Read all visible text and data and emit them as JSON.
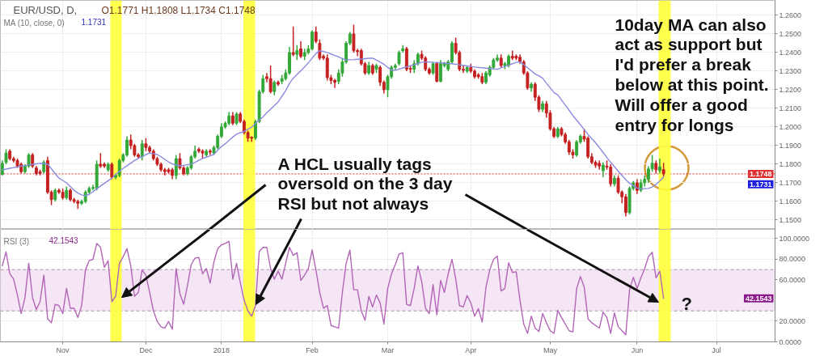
{
  "chart_data": [
    {
      "type": "candlestick",
      "title": "EUR/USD, D,",
      "subtitle": "O1.1771 H1.1808 L1.1734 C1.1748",
      "categories": [
        null,
        null,
        null,
        null,
        null,
        null,
        null,
        null,
        null,
        null,
        null,
        null,
        null,
        null,
        null,
        null,
        "Nov",
        null,
        null,
        null,
        null,
        null,
        null,
        null,
        null,
        null,
        null,
        null,
        null,
        null,
        null,
        null,
        null,
        null,
        null,
        null,
        null,
        null,
        "Dec",
        null,
        null,
        null,
        null,
        null,
        null,
        null,
        null,
        null,
        null,
        null,
        null,
        null,
        null,
        null,
        null,
        null,
        null,
        null,
        "2018",
        null,
        null,
        null,
        null,
        null,
        null,
        null,
        null,
        null,
        null,
        null,
        null,
        null,
        null,
        null,
        null,
        null,
        null,
        null,
        null,
        null,
        null,
        null,
        "Feb",
        null,
        null,
        null,
        null,
        null,
        null,
        null,
        null,
        null,
        null,
        null,
        null,
        null,
        null,
        null,
        null,
        null,
        null,
        null,
        "Mar",
        null,
        null,
        null,
        null,
        null,
        null,
        null,
        null,
        null,
        null,
        null,
        null,
        null,
        null,
        null,
        null,
        null,
        null,
        null,
        null,
        null,
        "Apr",
        null,
        null,
        null,
        null,
        null,
        null,
        null,
        null,
        null,
        null,
        null,
        null,
        null,
        null,
        null,
        null,
        null,
        null,
        null,
        null,
        "May",
        null,
        null,
        null,
        null,
        null,
        null,
        null,
        null,
        null,
        null,
        null,
        null,
        null,
        null,
        null,
        null,
        null,
        null,
        null,
        null,
        null,
        null,
        "Jun",
        null,
        null,
        null,
        null,
        null,
        null,
        null,
        null,
        null,
        null,
        null,
        null,
        null,
        null,
        null,
        null,
        null,
        null,
        null,
        null,
        "Jul",
        null,
        null,
        null,
        null,
        null,
        null,
        null,
        null,
        null,
        null,
        null,
        null,
        null,
        null,
        null
      ],
      "ohlc": [
        [
          1.1745,
          1.182,
          1.174,
          1.1805
        ],
        [
          1.181,
          1.188,
          1.18,
          1.186
        ],
        [
          1.187,
          1.188,
          1.182,
          1.183
        ],
        [
          1.183,
          1.184,
          1.181,
          1.182
        ],
        [
          1.182,
          1.183,
          1.178,
          1.179
        ],
        [
          1.18,
          1.181,
          1.175,
          1.176
        ],
        [
          1.176,
          1.18,
          1.175,
          1.179
        ],
        [
          1.179,
          1.186,
          1.178,
          1.185
        ],
        [
          1.185,
          1.186,
          1.178,
          1.179
        ],
        [
          1.178,
          1.179,
          1.174,
          1.175
        ],
        [
          1.176,
          1.177,
          1.174,
          1.175
        ],
        [
          1.176,
          1.182,
          1.175,
          1.181
        ],
        [
          1.182,
          1.184,
          1.164,
          1.165
        ],
        [
          1.165,
          1.166,
          1.158,
          1.161
        ],
        [
          1.161,
          1.167,
          1.16,
          1.166
        ],
        [
          1.166,
          1.167,
          1.164,
          1.165
        ],
        [
          1.165,
          1.167,
          1.161,
          1.162
        ],
        [
          1.162,
          1.168,
          1.161,
          1.166
        ],
        [
          1.166,
          1.167,
          1.16,
          1.161
        ],
        [
          1.161,
          1.162,
          1.159,
          1.16
        ],
        [
          1.16,
          1.161,
          1.156,
          1.159
        ],
        [
          1.159,
          1.161,
          1.158,
          1.16
        ],
        [
          1.16,
          1.166,
          1.159,
          1.165
        ],
        [
          1.165,
          1.168,
          1.164,
          1.167
        ],
        [
          1.167,
          1.169,
          1.166,
          1.1675
        ],
        [
          1.167,
          1.182,
          1.166,
          1.18
        ],
        [
          1.18,
          1.186,
          1.178,
          1.179
        ],
        [
          1.18,
          1.181,
          1.178,
          1.179
        ],
        [
          1.177,
          1.181,
          1.176,
          1.18
        ],
        [
          1.18,
          1.181,
          1.172,
          1.173
        ],
        [
          1.173,
          1.175,
          1.172,
          1.174
        ],
        [
          1.174,
          1.183,
          1.173,
          1.182
        ],
        [
          1.182,
          1.186,
          1.181,
          1.185
        ],
        [
          1.185,
          1.195,
          1.184,
          1.193
        ],
        [
          1.193,
          1.196,
          1.188,
          1.19
        ],
        [
          1.19,
          1.191,
          1.184,
          1.185
        ],
        [
          1.185,
          1.186,
          1.183,
          1.184
        ],
        [
          1.184,
          1.193,
          1.182,
          1.191
        ],
        [
          1.191,
          1.194,
          1.187,
          1.189
        ],
        [
          1.189,
          1.19,
          1.186,
          1.187
        ],
        [
          1.187,
          1.188,
          1.182,
          1.183
        ],
        [
          1.183,
          1.184,
          1.179,
          1.18
        ],
        [
          1.18,
          1.181,
          1.176,
          1.177
        ],
        [
          1.177,
          1.178,
          1.174,
          1.176
        ],
        [
          1.177,
          1.178,
          1.175,
          1.176
        ],
        [
          1.177,
          1.178,
          1.172,
          1.174
        ],
        [
          1.174,
          1.185,
          1.172,
          1.183
        ],
        [
          1.183,
          1.186,
          1.177,
          1.178
        ],
        [
          1.178,
          1.179,
          1.174,
          1.175
        ],
        [
          1.175,
          1.179,
          1.174,
          1.178
        ],
        [
          1.178,
          1.185,
          1.177,
          1.184
        ],
        [
          1.184,
          1.19,
          1.183,
          1.187
        ],
        [
          1.188,
          1.189,
          1.186,
          1.187
        ],
        [
          1.187,
          1.188,
          1.183,
          1.186
        ],
        [
          1.185,
          1.188,
          1.184,
          1.187
        ],
        [
          1.187,
          1.188,
          1.185,
          1.1865
        ],
        [
          1.186,
          1.19,
          1.185,
          1.189
        ],
        [
          1.189,
          1.196,
          1.188,
          1.195
        ],
        [
          1.195,
          1.202,
          1.194,
          1.2
        ],
        [
          1.2,
          1.203,
          1.199,
          1.202
        ],
        [
          1.202,
          1.208,
          1.201,
          1.206
        ],
        [
          1.206,
          1.208,
          1.201,
          1.202
        ],
        [
          1.202,
          1.208,
          1.201,
          1.207
        ],
        [
          1.207,
          1.208,
          1.202,
          1.203
        ],
        [
          1.203,
          1.204,
          1.196,
          1.197
        ],
        [
          1.197,
          1.198,
          1.192,
          1.194
        ],
        [
          1.1945,
          1.195,
          1.192,
          1.194
        ],
        [
          1.194,
          1.204,
          1.193,
          1.203
        ],
        [
          1.203,
          1.22,
          1.202,
          1.219
        ],
        [
          1.219,
          1.228,
          1.218,
          1.226
        ],
        [
          1.227,
          1.229,
          1.224,
          1.226
        ],
        [
          1.226,
          1.233,
          1.218,
          1.219
        ],
        [
          1.219,
          1.225,
          1.217,
          1.224
        ],
        [
          1.224,
          1.225,
          1.222,
          1.223
        ],
        [
          1.2245,
          1.228,
          1.223,
          1.226
        ],
        [
          1.226,
          1.231,
          1.225,
          1.229
        ],
        [
          1.229,
          1.243,
          1.228,
          1.24
        ],
        [
          1.24,
          1.254,
          1.238,
          1.239
        ],
        [
          1.239,
          1.244,
          1.236,
          1.241
        ],
        [
          1.242,
          1.246,
          1.237,
          1.238
        ],
        [
          1.238,
          1.242,
          1.236,
          1.24
        ],
        [
          1.24,
          1.244,
          1.239,
          1.242
        ],
        [
          1.242,
          1.252,
          1.241,
          1.251
        ],
        [
          1.251,
          1.254,
          1.245,
          1.246
        ],
        [
          1.245,
          1.247,
          1.236,
          1.237
        ],
        [
          1.238,
          1.239,
          1.236,
          1.237
        ],
        [
          1.237,
          1.239,
          1.225,
          1.2265
        ],
        [
          1.2265,
          1.228,
          1.223,
          1.225
        ],
        [
          1.225,
          1.226,
          1.221,
          1.224
        ],
        [
          1.2245,
          1.231,
          1.223,
          1.229
        ],
        [
          1.229,
          1.237,
          1.227,
          1.235
        ],
        [
          1.235,
          1.246,
          1.234,
          1.245
        ],
        [
          1.245,
          1.251,
          1.244,
          1.25
        ],
        [
          1.25,
          1.255,
          1.24,
          1.241
        ],
        [
          1.241,
          1.242,
          1.238,
          1.2405
        ],
        [
          1.241,
          1.242,
          1.233,
          1.234
        ],
        [
          1.234,
          1.235,
          1.228,
          1.229
        ],
        [
          1.229,
          1.235,
          1.228,
          1.233
        ],
        [
          1.233,
          1.234,
          1.228,
          1.229
        ],
        [
          1.231,
          1.234,
          1.229,
          1.233
        ],
        [
          1.232,
          1.233,
          1.222,
          1.224
        ],
        [
          1.224,
          1.225,
          1.218,
          1.22
        ],
        [
          1.22,
          1.228,
          1.216,
          1.227
        ],
        [
          1.227,
          1.233,
          1.226,
          1.232
        ],
        [
          1.232,
          1.234,
          1.231,
          1.233
        ],
        [
          1.234,
          1.241,
          1.233,
          1.24
        ],
        [
          1.241,
          1.244,
          1.24,
          1.242
        ],
        [
          1.242,
          1.243,
          1.23,
          1.231
        ],
        [
          1.2315,
          1.233,
          1.229,
          1.231
        ],
        [
          1.231,
          1.236,
          1.229,
          1.234
        ],
        [
          1.234,
          1.24,
          1.233,
          1.239
        ],
        [
          1.239,
          1.241,
          1.236,
          1.237
        ],
        [
          1.237,
          1.238,
          1.23,
          1.231
        ],
        [
          1.231,
          1.232,
          1.228,
          1.229
        ],
        [
          1.229,
          1.235,
          1.228,
          1.234
        ],
        [
          1.234,
          1.235,
          1.224,
          1.2245
        ],
        [
          1.2245,
          1.236,
          1.224,
          1.234
        ],
        [
          1.233,
          1.235,
          1.232,
          1.234
        ],
        [
          1.231,
          1.236,
          1.23,
          1.235
        ],
        [
          1.235,
          1.246,
          1.234,
          1.245
        ],
        [
          1.245,
          1.248,
          1.239,
          1.24
        ],
        [
          1.24,
          1.241,
          1.23,
          1.231
        ],
        [
          1.231,
          1.233,
          1.229,
          1.2305
        ],
        [
          1.23,
          1.233,
          1.229,
          1.232
        ],
        [
          1.232,
          1.234,
          1.229,
          1.23
        ],
        [
          1.23,
          1.231,
          1.226,
          1.227
        ],
        [
          1.228,
          1.229,
          1.226,
          1.227
        ],
        [
          1.227,
          1.229,
          1.223,
          1.224
        ],
        [
          1.224,
          1.23,
          1.223,
          1.229
        ],
        [
          1.228,
          1.233,
          1.227,
          1.232
        ],
        [
          1.232,
          1.237,
          1.231,
          1.236
        ],
        [
          1.236,
          1.239,
          1.235,
          1.237
        ],
        [
          1.237,
          1.239,
          1.232,
          1.233
        ],
        [
          1.233,
          1.235,
          1.231,
          1.234
        ],
        [
          1.233,
          1.239,
          1.232,
          1.238
        ],
        [
          1.238,
          1.241,
          1.236,
          1.237
        ],
        [
          1.238,
          1.239,
          1.236,
          1.237
        ],
        [
          1.2375,
          1.239,
          1.234,
          1.235
        ],
        [
          1.235,
          1.236,
          1.228,
          1.229
        ],
        [
          1.229,
          1.23,
          1.22,
          1.221
        ],
        [
          1.221,
          1.224,
          1.219,
          1.223
        ],
        [
          1.223,
          1.224,
          1.214,
          1.216
        ],
        [
          1.216,
          1.217,
          1.208,
          1.2095
        ],
        [
          1.2095,
          1.214,
          1.208,
          1.2125
        ],
        [
          1.2125,
          1.214,
          1.205,
          1.2075
        ],
        [
          1.2075,
          1.209,
          1.198,
          1.199
        ],
        [
          1.199,
          1.2,
          1.194,
          1.195
        ],
        [
          1.195,
          1.2,
          1.194,
          1.199
        ],
        [
          1.199,
          1.2,
          1.195,
          1.196
        ],
        [
          1.196,
          1.197,
          1.191,
          1.192
        ],
        [
          1.192,
          1.193,
          1.185,
          1.1865
        ],
        [
          1.1865,
          1.188,
          1.183,
          1.185
        ],
        [
          1.185,
          1.193,
          1.184,
          1.192
        ],
        [
          1.192,
          1.196,
          1.191,
          1.195
        ],
        [
          1.195,
          1.199,
          1.192,
          1.1935
        ],
        [
          1.194,
          1.195,
          1.183,
          1.184
        ],
        [
          1.184,
          1.186,
          1.18,
          1.181
        ],
        [
          1.181,
          1.182,
          1.178,
          1.1795
        ],
        [
          1.1805,
          1.182,
          1.177,
          1.179
        ],
        [
          1.1765,
          1.181,
          1.173,
          1.1795
        ],
        [
          1.179,
          1.182,
          1.177,
          1.1785
        ],
        [
          1.1785,
          1.18,
          1.168,
          1.1695
        ],
        [
          1.1695,
          1.174,
          1.168,
          1.1725
        ],
        [
          1.1725,
          1.174,
          1.164,
          1.165
        ],
        [
          1.165,
          1.166,
          1.159,
          1.1625
        ],
        [
          1.1625,
          1.164,
          1.152,
          1.154
        ],
        [
          1.154,
          1.168,
          1.153,
          1.167
        ],
        [
          1.167,
          1.171,
          1.166,
          1.17
        ],
        [
          1.17,
          1.172,
          1.164,
          1.166
        ],
        [
          1.166,
          1.172,
          1.165,
          1.17
        ],
        [
          1.17,
          1.174,
          1.168,
          1.172
        ],
        [
          1.172,
          1.179,
          1.17,
          1.1775
        ],
        [
          1.1775,
          1.185,
          1.176,
          1.1805
        ],
        [
          1.1805,
          1.182,
          1.175,
          1.177
        ],
        [
          1.1765,
          1.183,
          1.175,
          1.1785
        ],
        [
          1.1771,
          1.1808,
          1.1734,
          1.1748
        ],
        null,
        null,
        null,
        null,
        null,
        null,
        null,
        null,
        null,
        null,
        null,
        null,
        null,
        null,
        null,
        null,
        null,
        null,
        null,
        null,
        null,
        null,
        null,
        null,
        null,
        null,
        null,
        null,
        null
      ],
      "series": [
        {
          "type": "line",
          "color": "#8b8be0",
          "values": [
            1.177,
            1.1774,
            1.1778,
            1.1782,
            1.1786,
            1.179,
            1.1793,
            1.1796,
            1.1799,
            1.1802,
            1.1805,
            1.1803,
            1.18,
            1.1775,
            1.175,
            1.1725,
            1.1713,
            1.17,
            1.168,
            1.166,
            1.1645,
            1.1635,
            1.163,
            1.1638,
            1.1652,
            1.1668,
            1.1683,
            1.1697,
            1.1711,
            1.1725,
            1.1745,
            1.1762,
            1.1778,
            1.1792,
            1.1806,
            1.182,
            1.1831,
            1.1842,
            1.1852,
            1.186,
            1.1857,
            1.1852,
            1.184,
            1.1826,
            1.1812,
            1.1802,
            1.1795,
            1.1791,
            1.1794,
            1.1797,
            1.18,
            1.181,
            1.1821,
            1.1831,
            1.1838,
            1.1845,
            1.1853,
            1.1875,
            1.1895,
            1.191,
            1.1928,
            1.1946,
            1.1962,
            1.1969,
            1.1976,
            1.1988,
            1.1999,
            1.2019,
            1.2038,
            1.2054,
            1.2077,
            1.2095,
            1.2115,
            1.2135,
            1.2165,
            1.2195,
            1.2235,
            1.2262,
            1.2282,
            1.2302,
            1.2322,
            1.2345,
            1.237,
            1.2395,
            1.241,
            1.2405,
            1.24,
            1.2392,
            1.2384,
            1.2376,
            1.2368,
            1.236,
            1.2361,
            1.2362,
            1.2364,
            1.2365,
            1.2367,
            1.2369,
            1.237,
            1.236,
            1.2348,
            1.2337,
            1.232,
            1.2305,
            1.2305,
            1.2311,
            1.2317,
            1.2323,
            1.2329,
            1.2334,
            1.2342,
            1.2348,
            1.235,
            1.2349,
            1.2347,
            1.2346,
            1.2345,
            1.2343,
            1.2341,
            1.234,
            1.2337,
            1.2334,
            1.2331,
            1.2328,
            1.2325,
            1.2322,
            1.232,
            1.2318,
            1.2316,
            1.2314,
            1.2312,
            1.231,
            1.2318,
            1.2325,
            1.2332,
            1.234,
            1.2347,
            1.235,
            1.2335,
            1.2318,
            1.2302,
            1.2285,
            1.2275,
            1.2262,
            1.2235,
            1.221,
            1.2185,
            1.2172,
            1.2145,
            1.2118,
            1.209,
            1.2062,
            1.2037,
            1.2012,
            1.1986,
            1.196,
            1.1938,
            1.1915,
            1.189,
            1.1863,
            1.1836,
            1.181,
            1.1787,
            1.1763,
            1.174,
            1.1717,
            1.1698,
            1.1685,
            1.1672,
            1.1668,
            1.1669,
            1.167,
            1.1678,
            1.1692,
            1.171,
            1.1731,
            null,
            null,
            null,
            null,
            null,
            null,
            null,
            null,
            null,
            null,
            null,
            null,
            null,
            null,
            null,
            null,
            null,
            null,
            null,
            null,
            null,
            null,
            null,
            null,
            null,
            null,
            null,
            null,
            null
          ]
        }
      ],
      "ylim": [
        1.145,
        1.268
      ],
      "yticks": [
        {
          "value": 1.15,
          "label": "1.1500"
        },
        {
          "value": 1.16,
          "label": "1.1600"
        },
        {
          "value": 1.17,
          "label": "1.1700"
        },
        {
          "value": 1.18,
          "label": "1.1800"
        },
        {
          "value": 1.19,
          "label": "1.1900"
        },
        {
          "value": 1.2,
          "label": "1.2000"
        },
        {
          "value": 1.21,
          "label": "1.2100"
        },
        {
          "value": 1.22,
          "label": "1.2200"
        },
        {
          "value": 1.23,
          "label": "1.2300"
        },
        {
          "value": 1.24,
          "label": "1.2400"
        },
        {
          "value": 1.25,
          "label": "1.2500"
        },
        {
          "value": 1.26,
          "label": "1.2600"
        }
      ],
      "ref_lines": [
        {
          "axis": "y",
          "value": 1.1748,
          "label": "1.1748",
          "color": "#e03030",
          "line_style": "dotted"
        }
      ],
      "annotations": [
        "MA (10, close, 0)",
        "1.1731",
        {
          "text": "1.1731",
          "y": 1.1731
        },
        "10day MA can also\nact as support but\nI'd prefer a break\nbelow at this point.\nWill offer a good\nentry for longs",
        "A HCL usually tags\noversold on the 3 day\nRSI but not always"
      ],
      "grid": true,
      "tick_labels": "y"
    },
    {
      "type": "line",
      "categories": [
        null,
        null,
        null,
        null,
        null,
        null,
        null,
        null,
        null,
        null,
        null,
        null,
        null,
        null,
        null,
        null,
        "Nov",
        null,
        null,
        null,
        null,
        null,
        null,
        null,
        null,
        null,
        null,
        null,
        null,
        null,
        null,
        null,
        null,
        null,
        null,
        null,
        null,
        null,
        "Dec",
        null,
        null,
        null,
        null,
        null,
        null,
        null,
        null,
        null,
        null,
        null,
        null,
        null,
        null,
        null,
        null,
        null,
        null,
        null,
        "2018",
        null,
        null,
        null,
        null,
        null,
        null,
        null,
        null,
        null,
        null,
        null,
        null,
        null,
        null,
        null,
        null,
        null,
        null,
        null,
        null,
        null,
        null,
        null,
        "Feb",
        null,
        null,
        null,
        null,
        null,
        null,
        null,
        null,
        null,
        null,
        null,
        null,
        null,
        null,
        null,
        null,
        null,
        null,
        null,
        "Mar",
        null,
        null,
        null,
        null,
        null,
        null,
        null,
        null,
        null,
        null,
        null,
        null,
        null,
        null,
        null,
        null,
        null,
        null,
        null,
        null,
        null,
        "Apr",
        null,
        null,
        null,
        null,
        null,
        null,
        null,
        null,
        null,
        null,
        null,
        null,
        null,
        null,
        null,
        null,
        null,
        null,
        null,
        null,
        "May",
        null,
        null,
        null,
        null,
        null,
        null,
        null,
        null,
        null,
        null,
        null,
        null,
        null,
        null,
        null,
        null,
        null,
        null,
        null,
        null,
        null,
        null,
        "Jun",
        null,
        null,
        null,
        null,
        null,
        null,
        null,
        null,
        null,
        null,
        null,
        null,
        null,
        null,
        null,
        null,
        null,
        null,
        null,
        null,
        "Jul",
        null,
        null,
        null,
        null,
        null,
        null,
        null,
        null,
        null,
        null,
        null,
        null,
        null,
        null,
        null
      ],
      "series": [
        {
          "color": "#b366b8",
          "values": [
            73.6,
            87.2,
            65.9,
            60.8,
            45.4,
            27.4,
            42.8,
            76.2,
            42.8,
            31.3,
            39.0,
            64.6,
            22.3,
            18.5,
            36.4,
            35.1,
            27.4,
            51.8,
            32.6,
            32.6,
            23.6,
            35.1,
            69.7,
            78.7,
            80.0,
            95.4,
            91.5,
            72.3,
            78.7,
            39.0,
            44.1,
            76.2,
            82.6,
            90.3,
            73.6,
            44.1,
            47.9,
            69.7,
            64.6,
            47.9,
            30.0,
            19.7,
            14.6,
            13.3,
            19.7,
            12.1,
            71.0,
            46.7,
            36.4,
            54.4,
            74.9,
            81.3,
            81.8,
            65.9,
            71.0,
            56.9,
            77.4,
            90.3,
            94.1,
            95.4,
            97.4,
            60.8,
            76.2,
            56.9,
            40.3,
            30.0,
            24.9,
            35.1,
            87.7,
            91.5,
            91.5,
            71.0,
            60.8,
            68.5,
            60.8,
            76.2,
            91.5,
            83.8,
            86.4,
            59.5,
            64.6,
            71.0,
            89.0,
            69.7,
            47.9,
            32.6,
            35.1,
            15.9,
            14.6,
            13.3,
            47.9,
            76.2,
            89.0,
            50.5,
            50.5,
            30.0,
            21.0,
            44.1,
            33.8,
            45.4,
            37.7,
            17.2,
            51.8,
            65.9,
            74.9,
            85.1,
            86.4,
            36.4,
            35.1,
            51.8,
            73.6,
            58.2,
            32.6,
            27.4,
            55.6,
            26.2,
            59.5,
            47.9,
            65.9,
            80.0,
            60.8,
            35.1,
            33.8,
            44.9,
            37.7,
            24.9,
            32.1,
            19.2,
            53.1,
            69.7,
            80.0,
            83.1,
            49.2,
            51.8,
            76.7,
            67.2,
            67.9,
            40.3,
            17.2,
            8.2,
            24.9,
            13.3,
            10.0,
            27.4,
            18.5,
            10.8,
            8.2,
            30.5,
            23.6,
            17.2,
            10.8,
            9.5,
            51.8,
            63.3,
            53.1,
            22.3,
            18.5,
            15.9,
            13.3,
            28.7,
            23.6,
            8.2,
            28.0,
            14.6,
            10.8,
            6.9,
            50.5,
            62.6,
            51.8,
            62.1,
            71.0,
            82.6,
            86.9,
            62.1,
            68.5,
            42.1543,
            null,
            null,
            null,
            null,
            null,
            null,
            null,
            null,
            null,
            null,
            null,
            null,
            null,
            null,
            null,
            null,
            null,
            null,
            null,
            null,
            null,
            null,
            null,
            null,
            null,
            null,
            null,
            null,
            null
          ]
        }
      ],
      "ylim": [
        0,
        109
      ],
      "yticks": [
        {
          "value": 0,
          "label": "0.0000"
        },
        {
          "value": 20,
          "label": "20.0000"
        },
        {
          "value": 60,
          "label": "60.0000"
        },
        {
          "value": 80,
          "label": "80.0000"
        },
        {
          "value": 100,
          "label": "100.0000"
        }
      ],
      "bands": [
        {
          "axis": "y",
          "from": 30,
          "to": 70,
          "color": "#f4e6f4"
        }
      ],
      "ref_lines": [
        {
          "axis": "y",
          "value": 70,
          "color": "#b08fb0",
          "line_style": "dashed"
        },
        {
          "axis": "y",
          "value": 30,
          "color": "#b08fb0",
          "line_style": "dashed"
        }
      ],
      "annotations": [
        "RSI (3)",
        "42.1543",
        "42.1543",
        "?"
      ],
      "grid": true
    }
  ]
}
